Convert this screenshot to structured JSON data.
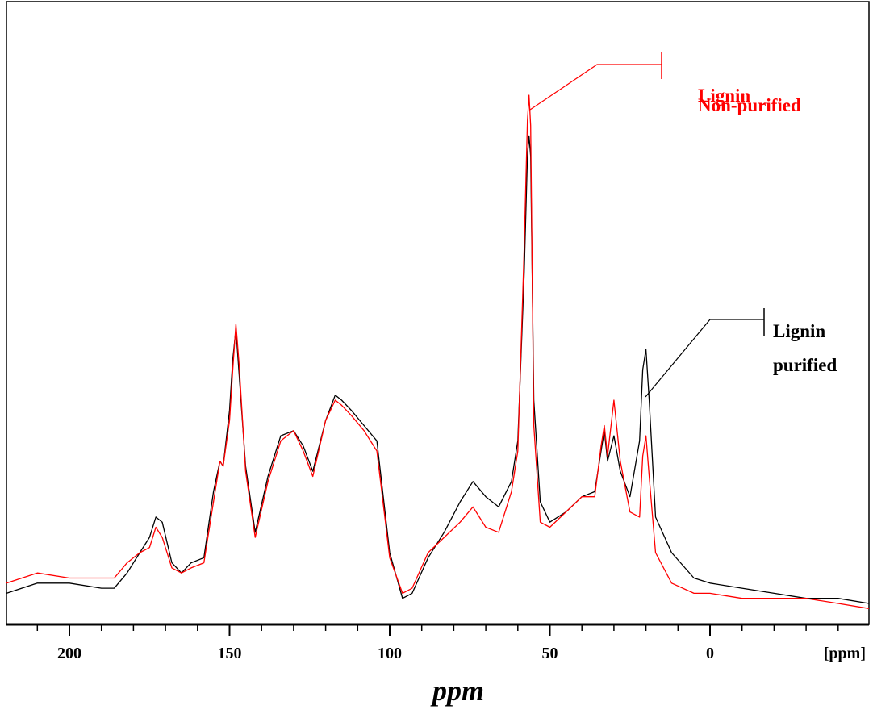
{
  "chart_data": {
    "type": "line",
    "title": "",
    "xlabel": "ppm",
    "x_unit_label": "[ppm]",
    "ylabel": "",
    "xlim": [
      220,
      -50
    ],
    "ylim": [
      -0.05,
      1.05
    ],
    "x_reversed": true,
    "grid": false,
    "x_ticks": [
      200,
      150,
      100,
      50,
      0
    ],
    "x_tick_labels": [
      "200",
      "150",
      "100",
      "50",
      "0"
    ],
    "series": [
      {
        "name": "Lignin purified",
        "label_lines": [
          "Lignin",
          "purified"
        ],
        "color": "#000000",
        "x": [
          220,
          210,
          200,
          190,
          186,
          182,
          178,
          175,
          173,
          171,
          168,
          165,
          162,
          158,
          155,
          153,
          152,
          150,
          149,
          148,
          147,
          145,
          142,
          138,
          134,
          130,
          127,
          124,
          120,
          117,
          115,
          112,
          108,
          104,
          100,
          96,
          93,
          88,
          83,
          78,
          74,
          70,
          66,
          62,
          60,
          58,
          57,
          56.5,
          56,
          55,
          53,
          50,
          45,
          40,
          36,
          34,
          33,
          32,
          30,
          28,
          25,
          22,
          21,
          20,
          19,
          17,
          12,
          5,
          0,
          -10,
          -20,
          -30,
          -40,
          -50
        ],
        "y": [
          0.02,
          0.04,
          0.04,
          0.03,
          0.03,
          0.06,
          0.1,
          0.13,
          0.17,
          0.16,
          0.08,
          0.06,
          0.08,
          0.09,
          0.22,
          0.28,
          0.27,
          0.38,
          0.48,
          0.54,
          0.45,
          0.27,
          0.14,
          0.25,
          0.33,
          0.34,
          0.31,
          0.26,
          0.36,
          0.41,
          0.4,
          0.38,
          0.35,
          0.32,
          0.1,
          0.01,
          0.02,
          0.09,
          0.14,
          0.2,
          0.24,
          0.21,
          0.19,
          0.24,
          0.32,
          0.65,
          0.88,
          0.92,
          0.88,
          0.4,
          0.2,
          0.16,
          0.18,
          0.21,
          0.22,
          0.3,
          0.34,
          0.28,
          0.33,
          0.26,
          0.21,
          0.32,
          0.46,
          0.5,
          0.4,
          0.17,
          0.1,
          0.05,
          0.04,
          0.03,
          0.02,
          0.01,
          0.01,
          0.0
        ]
      },
      {
        "name": "Lignin Non-purified",
        "label_lines": [
          "Lignin",
          "Non-purified"
        ],
        "color": "#ff0000",
        "x": [
          220,
          210,
          200,
          190,
          186,
          182,
          178,
          175,
          173,
          171,
          168,
          165,
          162,
          158,
          155,
          153,
          152,
          150,
          149,
          148,
          147,
          145,
          142,
          138,
          134,
          130,
          127,
          124,
          120,
          117,
          115,
          112,
          108,
          104,
          100,
          96,
          93,
          88,
          83,
          78,
          74,
          70,
          66,
          62,
          60,
          58,
          57,
          56.5,
          56,
          55,
          53,
          50,
          45,
          40,
          36,
          34,
          33,
          32,
          30,
          28,
          25,
          22,
          21,
          20,
          19,
          17,
          12,
          5,
          0,
          -10,
          -20,
          -30,
          -40,
          -50
        ],
        "y": [
          0.04,
          0.06,
          0.05,
          0.05,
          0.05,
          0.08,
          0.1,
          0.11,
          0.15,
          0.13,
          0.07,
          0.06,
          0.07,
          0.08,
          0.2,
          0.28,
          0.27,
          0.36,
          0.46,
          0.55,
          0.47,
          0.26,
          0.13,
          0.24,
          0.32,
          0.34,
          0.3,
          0.25,
          0.36,
          0.4,
          0.39,
          0.37,
          0.34,
          0.3,
          0.09,
          0.02,
          0.03,
          0.1,
          0.13,
          0.16,
          0.19,
          0.15,
          0.14,
          0.22,
          0.3,
          0.7,
          0.95,
          1.0,
          0.94,
          0.35,
          0.16,
          0.15,
          0.18,
          0.21,
          0.21,
          0.31,
          0.35,
          0.29,
          0.4,
          0.28,
          0.18,
          0.17,
          0.29,
          0.33,
          0.25,
          0.1,
          0.04,
          0.02,
          0.02,
          0.01,
          0.01,
          0.01,
          0.0,
          -0.01
        ]
      }
    ]
  }
}
